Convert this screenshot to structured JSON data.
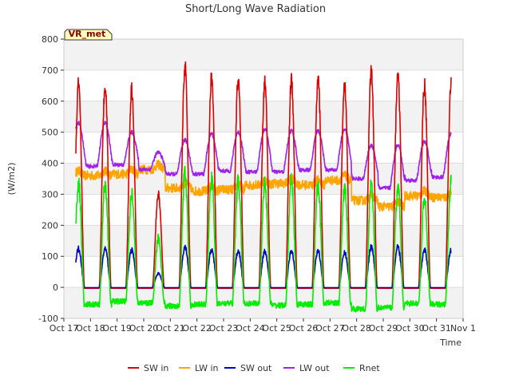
{
  "chart_data": {
    "type": "line",
    "title": "Short/Long Wave Radiation",
    "xlabel": "Time",
    "ylabel": "(W/m2)",
    "ylim": [
      -100,
      800
    ],
    "xlim": [
      0,
      15
    ],
    "yticks": [
      -100,
      0,
      100,
      200,
      300,
      400,
      500,
      600,
      700,
      800
    ],
    "xtick_labels": [
      "Oct 17",
      "Oct 18",
      "Oct 19",
      "Oct 20",
      "Oct 21",
      "Oct 22",
      "Oct 23",
      "Oct 24",
      "Oct 25",
      "Oct 26",
      "Oct 27",
      "Oct 28",
      "Oct 29",
      "Oct 30",
      "Oct 31",
      "Nov 1"
    ],
    "annotation": "VR_met",
    "legend_position": "bottom-center",
    "data_start_day": 0.45,
    "data_end_day": 14.55,
    "daily_peak_day_offset": 0.55,
    "series": [
      {
        "name": "SW in",
        "color": "#dd0000",
        "night_value": -3,
        "daily_peaks": [
          655,
          640,
          300,
          712,
          680,
          672,
          660,
          670,
          675,
          648,
          695,
          688,
          652,
          652
        ]
      },
      {
        "name": "LW in",
        "color": "#ffa500",
        "daily_mean": [
          360,
          365,
          380,
          320,
          310,
          315,
          330,
          335,
          330,
          345,
          280,
          260,
          295,
          290
        ]
      },
      {
        "name": "SW out",
        "color": "#0000cc",
        "night_value": -1,
        "daily_peaks": [
          125,
          120,
          45,
          130,
          122,
          118,
          116,
          118,
          118,
          112,
          132,
          130,
          120,
          120
        ]
      },
      {
        "name": "LW out",
        "color": "#a020f0",
        "daily_night": [
          390,
          395,
          380,
          365,
          365,
          375,
          372,
          372,
          378,
          378,
          350,
          320,
          345,
          355
        ],
        "daily_peaks": [
          530,
          500,
          435,
          475,
          495,
          500,
          510,
          505,
          505,
          510,
          458,
          460,
          470,
          495
        ]
      },
      {
        "name": "Rnet",
        "color": "#00ee00",
        "daily_night": [
          -55,
          -45,
          -50,
          -60,
          -55,
          -52,
          -52,
          -58,
          -55,
          -50,
          -70,
          -65,
          -52,
          -55
        ],
        "daily_peaks": [
          335,
          305,
          160,
          365,
          345,
          340,
          335,
          340,
          330,
          318,
          325,
          318,
          290,
          335
        ]
      }
    ]
  },
  "shaded_bands": [
    [
      -100,
      0
    ],
    [
      100,
      200
    ],
    [
      300,
      400
    ],
    [
      500,
      600
    ],
    [
      700,
      800
    ]
  ]
}
